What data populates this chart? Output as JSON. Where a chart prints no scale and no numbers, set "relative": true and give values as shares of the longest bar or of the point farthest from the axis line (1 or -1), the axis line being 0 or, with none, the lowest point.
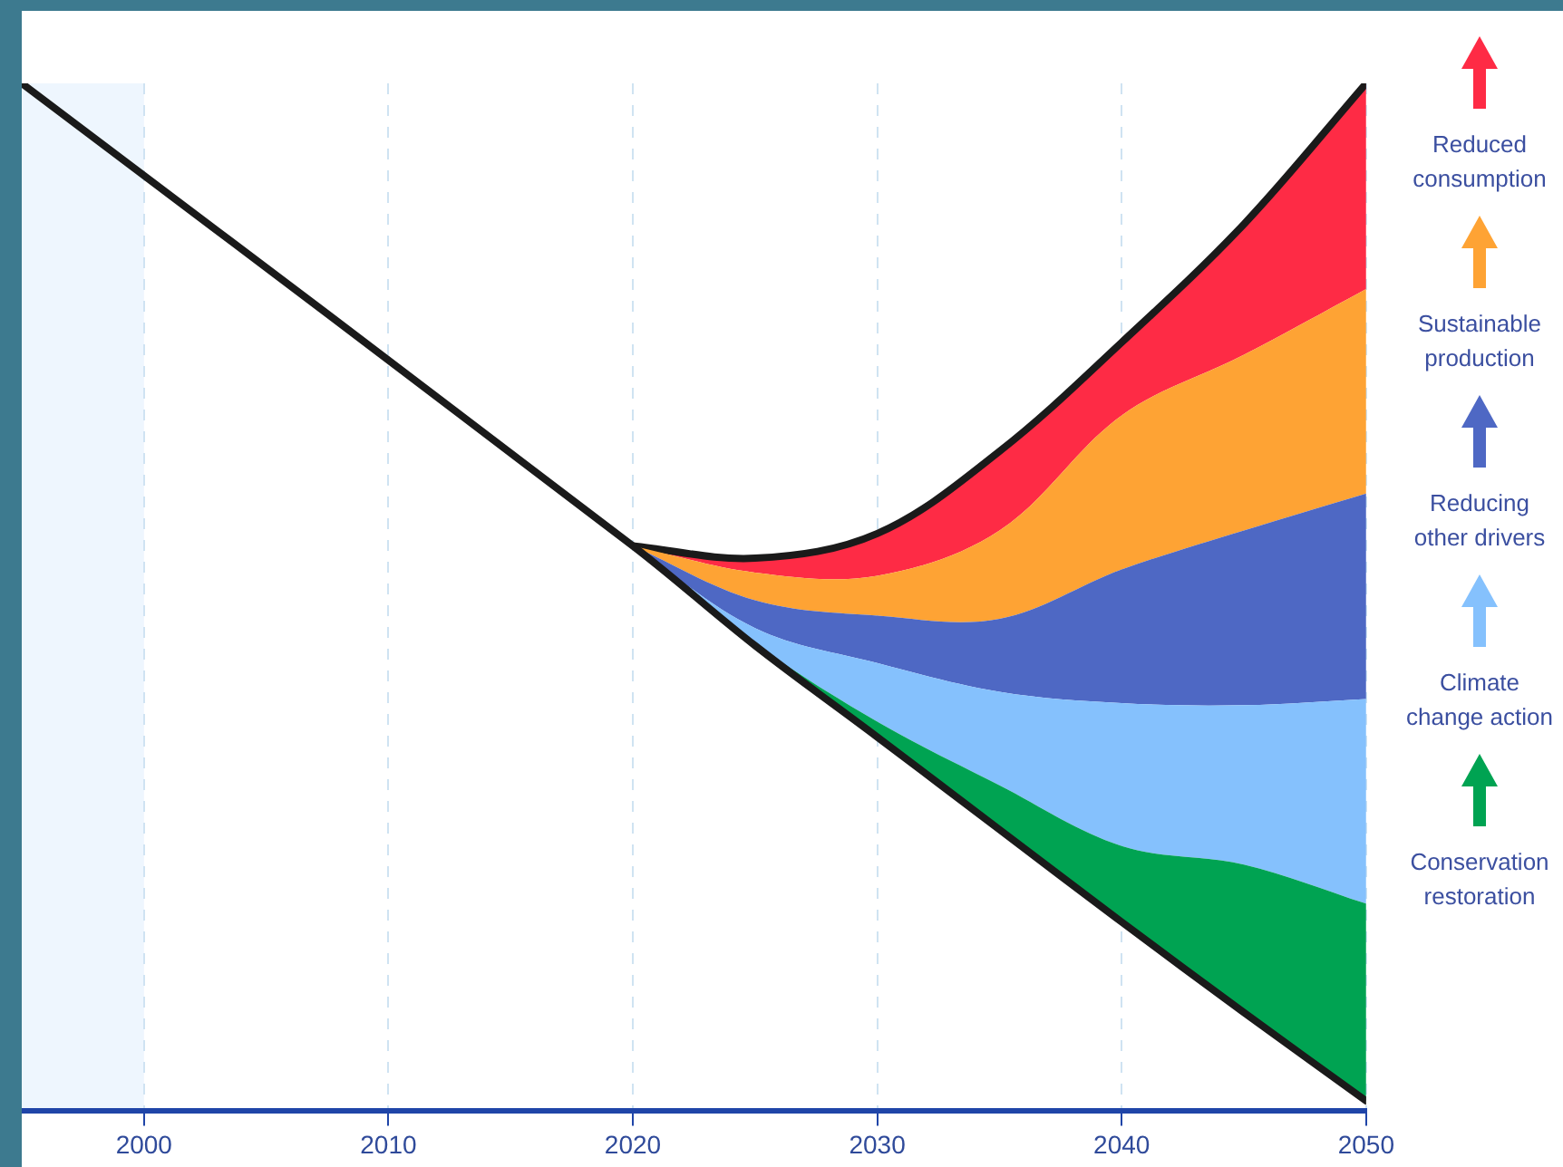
{
  "chart_data": {
    "type": "area",
    "relative": true,
    "x": [
      2020,
      2025,
      2030,
      2035,
      2040,
      2045,
      2050
    ],
    "xlim": [
      1995,
      2050
    ],
    "xticks": [
      2000,
      2010,
      2020,
      2030,
      2040,
      2050
    ],
    "grid": "x",
    "legend": "right",
    "bands": [
      {
        "axis": "x",
        "from": 1995,
        "to": 2000,
        "color": "#eef6fe"
      }
    ],
    "series": [
      {
        "type": "line",
        "color": "#1a1a1a",
        "x": [
          1995,
          2020,
          2025,
          2030,
          2035,
          2040,
          2045,
          2050
        ],
        "values": [
          1.0,
          0.55,
          0.453,
          0.364,
          0.274,
          0.184,
          0.096,
          0.01
        ]
      },
      {
        "name": "Conservation restoration",
        "color": "#00a352",
        "values": [
          0.55,
          0.455,
          0.379,
          0.317,
          0.258,
          0.24,
          0.202
        ]
      },
      {
        "name": "Climate change action",
        "color": "#85c1fd",
        "values": [
          0.55,
          0.47,
          0.436,
          0.408,
          0.397,
          0.395,
          0.401
        ]
      },
      {
        "name": "Reducing other drivers",
        "color": "#4e68c4",
        "values": [
          0.55,
          0.497,
          0.482,
          0.479,
          0.527,
          0.565,
          0.601
        ]
      },
      {
        "name": "Sustainable production",
        "color": "#fea334",
        "values": [
          0.55,
          0.524,
          0.521,
          0.565,
          0.677,
          0.736,
          0.8
        ]
      },
      {
        "name": "Reduced consumption",
        "color": "#fe2b45",
        "values": [
          0.55,
          0.538,
          0.562,
          0.642,
          0.748,
          0.863,
          1.0
        ]
      }
    ]
  }
}
